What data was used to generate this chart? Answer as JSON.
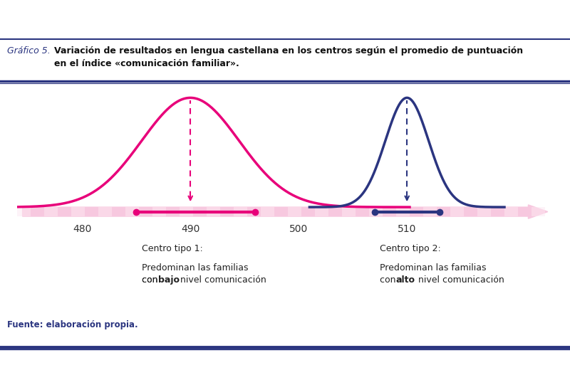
{
  "title_prefix": "Gráfico 5.",
  "title_main": "Variación de resultados en lengua castellana en los centros según el promedio de puntuación\nen el índice «comunicación familiar».",
  "background_color": "#ffffff",
  "pink_color": "#e8007a",
  "navy_color": "#2b3580",
  "axis_bar_color": "#f7c8df",
  "curve1_mean": 490,
  "curve1_std": 4.5,
  "curve2_mean": 510,
  "curve2_std": 2.0,
  "xmin": 474,
  "xmax": 524,
  "xticks": [
    480,
    490,
    500,
    510
  ],
  "source_text": "Fuente: elaboración propia.",
  "legend1_title": "Centro tipo 1:",
  "legend1_line1": "Predominan las familias",
  "legend1_line2_normal": "con ",
  "legend1_line2_bold": "bajo",
  "legend1_line2_end": " nivel comunicación",
  "legend2_title": "Centro tipo 2:",
  "legend2_line1": "Predominan las familias",
  "legend2_line2_normal": "con ",
  "legend2_line2_bold": "alto",
  "legend2_line2_end": " nivel comunicación",
  "curve1_range_lo": 485,
  "curve1_range_hi": 496,
  "curve2_range_lo": 507,
  "curve2_range_hi": 513,
  "footer_bar_color": "#2b3580",
  "header_line_color": "#2b3580"
}
